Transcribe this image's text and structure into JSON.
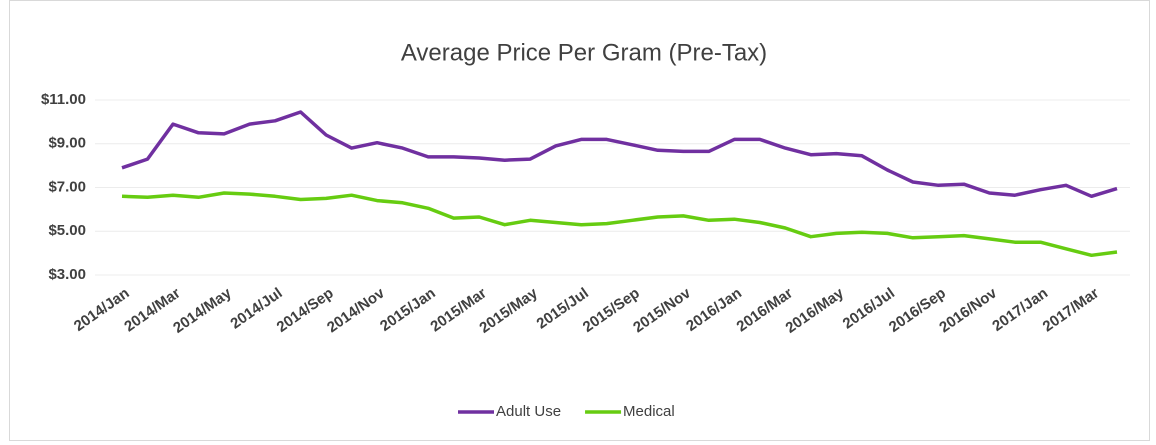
{
  "chart_data": {
    "type": "line",
    "title": "Average Price Per Gram (Pre-Tax)",
    "categories": [
      "2014/Jan",
      null,
      "2014/Mar",
      null,
      "2014/May",
      null,
      "2014/Jul",
      null,
      "2014/Sep",
      null,
      "2014/Nov",
      null,
      "2015/Jan",
      null,
      "2015/Mar",
      null,
      "2015/May",
      null,
      "2015/Jul",
      null,
      "2015/Sep",
      null,
      "2015/Nov",
      null,
      "2016/Jan",
      null,
      "2016/Mar",
      null,
      "2016/May",
      null,
      "2016/Jul",
      null,
      "2016/Sep",
      null,
      "2016/Nov",
      null,
      "2017/Jan",
      null,
      "2017/Mar",
      null
    ],
    "series": [
      {
        "name": "Adult Use",
        "color": "#7030a0",
        "values": [
          7.9,
          8.3,
          9.9,
          9.5,
          9.45,
          9.9,
          10.05,
          10.45,
          9.4,
          8.8,
          9.05,
          8.8,
          8.4,
          8.4,
          8.35,
          8.25,
          8.3,
          8.9,
          9.2,
          9.2,
          8.95,
          8.7,
          8.65,
          8.65,
          9.2,
          9.2,
          8.8,
          8.5,
          8.55,
          8.45,
          7.8,
          7.25,
          7.1,
          7.15,
          6.75,
          6.65,
          6.9,
          7.1,
          6.6,
          6.95
        ]
      },
      {
        "name": "Medical",
        "color": "#66cc11",
        "values": [
          6.6,
          6.55,
          6.65,
          6.55,
          6.75,
          6.7,
          6.6,
          6.45,
          6.5,
          6.65,
          6.4,
          6.3,
          6.05,
          5.6,
          5.65,
          5.3,
          5.5,
          5.4,
          5.3,
          5.35,
          5.5,
          5.65,
          5.7,
          5.5,
          5.55,
          5.4,
          5.15,
          4.75,
          4.9,
          4.95,
          4.9,
          4.7,
          4.75,
          4.8,
          4.65,
          4.5,
          4.5,
          4.2,
          3.9,
          4.05
        ]
      }
    ],
    "ylim": [
      3,
      11
    ],
    "yticks": [
      {
        "value": 3,
        "label": "$3.00"
      },
      {
        "value": 5,
        "label": "$5.00"
      },
      {
        "value": 7,
        "label": "$7.00"
      },
      {
        "value": 9,
        "label": "$9.00"
      },
      {
        "value": 11,
        "label": "$11.00"
      }
    ],
    "grid": true,
    "legend": "bottom"
  }
}
